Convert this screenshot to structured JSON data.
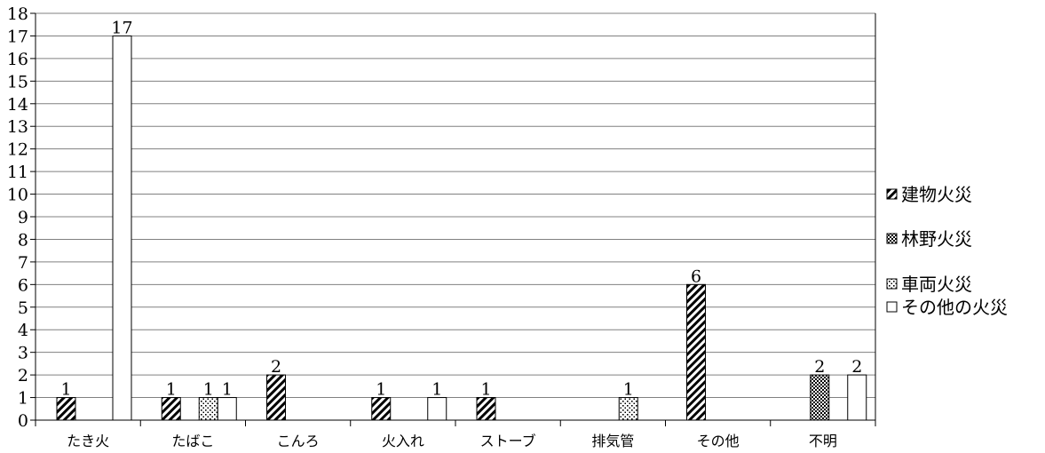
{
  "chart_data": {
    "type": "bar",
    "title": "",
    "xlabel": "",
    "ylabel": "",
    "ylim": [
      0,
      18
    ],
    "yticks": [
      0,
      1,
      2,
      3,
      4,
      5,
      6,
      7,
      8,
      9,
      10,
      11,
      12,
      13,
      14,
      15,
      16,
      17,
      18
    ],
    "grid": true,
    "legend_position": "right",
    "categories": [
      "たき火",
      "たばこ",
      "こんろ",
      "火入れ",
      "ストーブ",
      "排気管",
      "その他",
      "不明"
    ],
    "series": [
      {
        "name": "建物火災",
        "pattern": "diagonal-hatch",
        "values": [
          1,
          1,
          2,
          1,
          1,
          0,
          6,
          0
        ]
      },
      {
        "name": "林野火災",
        "pattern": "crosshatch",
        "values": [
          0,
          0,
          0,
          0,
          0,
          0,
          0,
          2
        ]
      },
      {
        "name": "車両火災",
        "pattern": "dotted",
        "values": [
          0,
          1,
          0,
          0,
          0,
          1,
          0,
          0
        ]
      },
      {
        "name": "その他の火災",
        "pattern": "white",
        "values": [
          17,
          1,
          0,
          1,
          0,
          0,
          0,
          2
        ]
      }
    ]
  }
}
